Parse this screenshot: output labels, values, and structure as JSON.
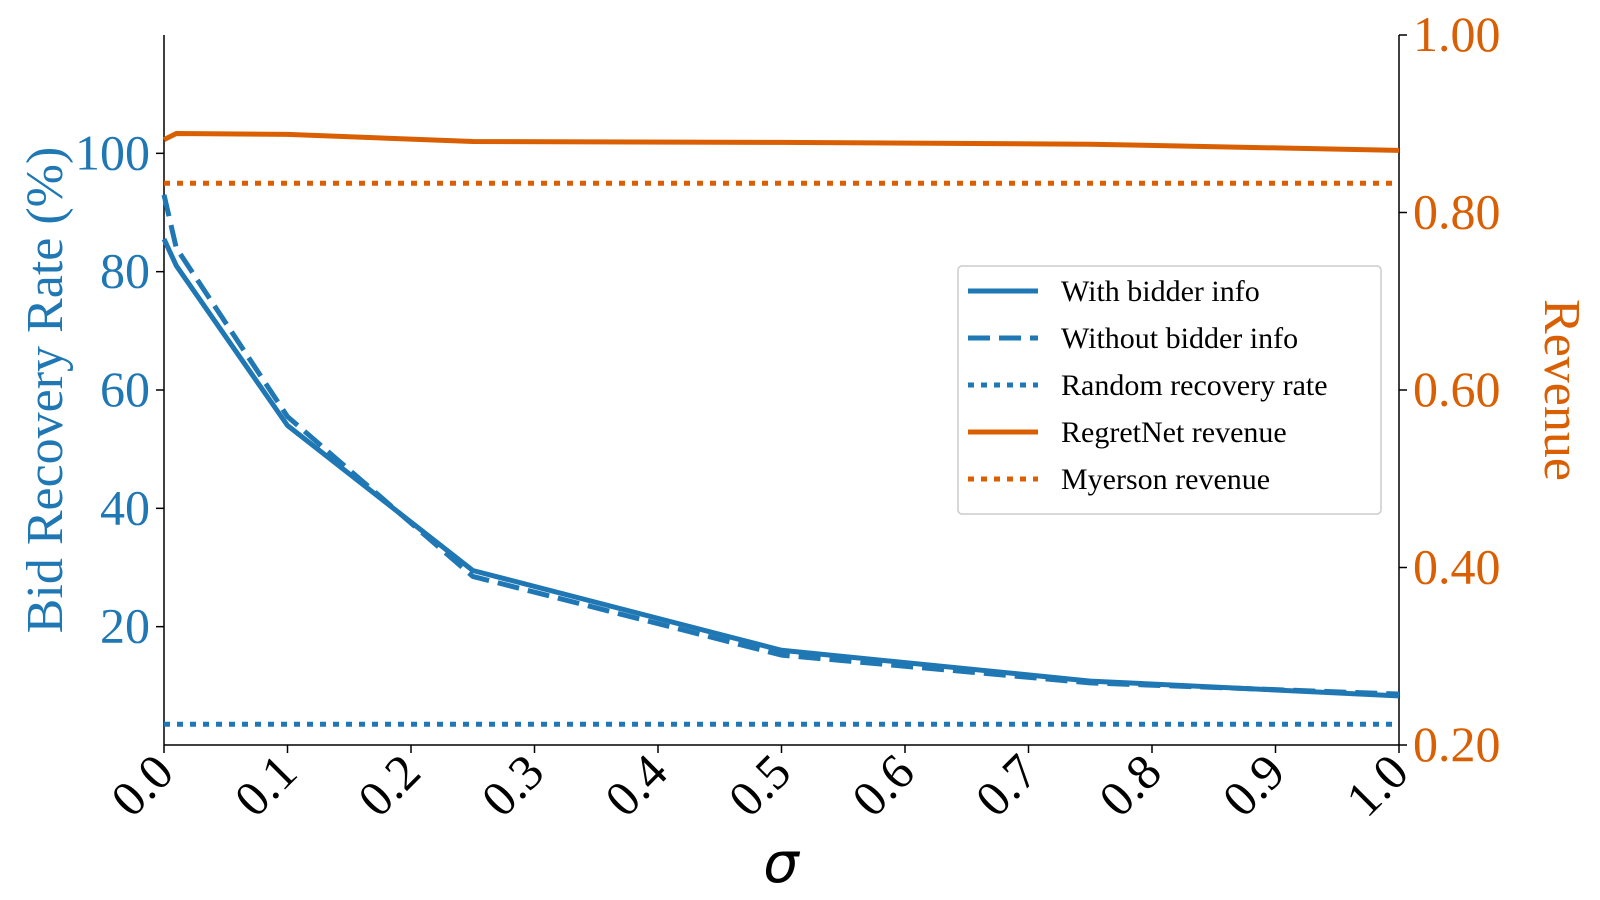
{
  "chart_data": {
    "type": "line",
    "title": "",
    "xlabel": "σ",
    "ylabel_left": "Bid Recovery Rate (%)",
    "ylabel_right": "Revenue",
    "xlim": [
      0.0,
      1.0
    ],
    "ylim_left": [
      0,
      120
    ],
    "ylim_right": [
      0.2,
      1.0
    ],
    "xticks": [
      "0.0",
      "0.1",
      "0.2",
      "0.3",
      "0.4",
      "0.5",
      "0.6",
      "0.7",
      "0.8",
      "0.9",
      "1.0"
    ],
    "yticks_left": [
      "20",
      "40",
      "60",
      "80",
      "100"
    ],
    "yticks_right": [
      "0.20",
      "0.40",
      "0.60",
      "0.80",
      "1.00"
    ],
    "grid": false,
    "legend_position": "center-right",
    "colors": {
      "blue": "#1f77b4",
      "orange": "#d95f02"
    },
    "series": [
      {
        "name": "With bidder info",
        "axis": "left",
        "color": "#1f77b4",
        "style": "solid",
        "x": [
          0.0,
          0.01,
          0.1,
          0.25,
          0.5,
          0.75,
          1.0
        ],
        "y": [
          85.5,
          81,
          54,
          29.5,
          16,
          10.8,
          8.3
        ]
      },
      {
        "name": "Without bidder info",
        "axis": "left",
        "color": "#1f77b4",
        "style": "dashed",
        "x": [
          0.0,
          0.01,
          0.1,
          0.25,
          0.5,
          0.75,
          1.0
        ],
        "y": [
          93,
          84,
          55.5,
          28.5,
          15.2,
          10.5,
          8.6
        ]
      },
      {
        "name": "Random recovery rate",
        "axis": "left",
        "color": "#1f77b4",
        "style": "dotted",
        "x": [
          0.0,
          1.0
        ],
        "y": [
          3.5,
          3.5
        ]
      },
      {
        "name": "RegretNet revenue",
        "axis": "right",
        "color": "#d95f02",
        "style": "solid",
        "x": [
          0.0,
          0.01,
          0.1,
          0.25,
          0.5,
          0.75,
          1.0
        ],
        "y": [
          0.882,
          0.889,
          0.888,
          0.88,
          0.879,
          0.877,
          0.87
        ]
      },
      {
        "name": "Myerson revenue",
        "axis": "right",
        "color": "#d95f02",
        "style": "dotted",
        "x": [
          0.0,
          1.0
        ],
        "y": [
          0.833,
          0.833
        ]
      }
    ]
  }
}
